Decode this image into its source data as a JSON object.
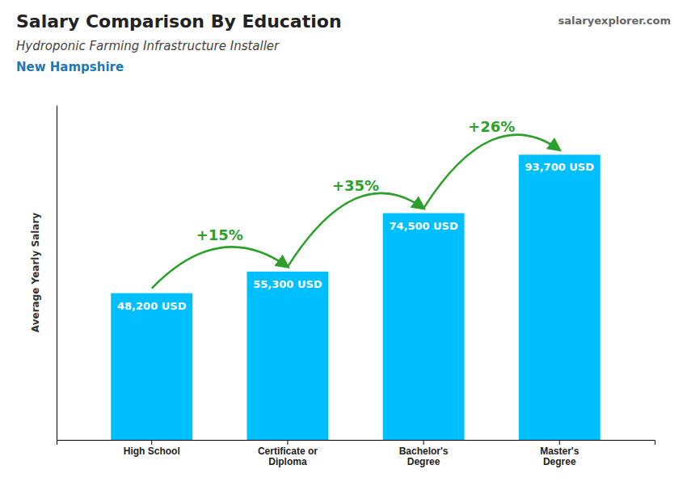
{
  "chart_data": {
    "type": "bar",
    "title": "Salary Comparison By Education",
    "subtitle": "Hydroponic Farming Infrastructure Installer",
    "location": "New Hampshire",
    "watermark": "salaryexplorer.com",
    "ylabel": "Average Yearly Salary",
    "categories": [
      "High School",
      "Certificate or\nDiploma",
      "Bachelor's\nDegree",
      "Master's\nDegree"
    ],
    "values": [
      48200,
      55300,
      74500,
      93700
    ],
    "value_labels": [
      "48,200 USD",
      "55,300 USD",
      "74,500 USD",
      "93,700 USD"
    ],
    "data_labels": true,
    "color": "#00BFFF",
    "annotations": [
      "+15%",
      "+35%",
      "+26%"
    ],
    "ylim": [
      0,
      110000
    ],
    "tick_labels": "x"
  }
}
